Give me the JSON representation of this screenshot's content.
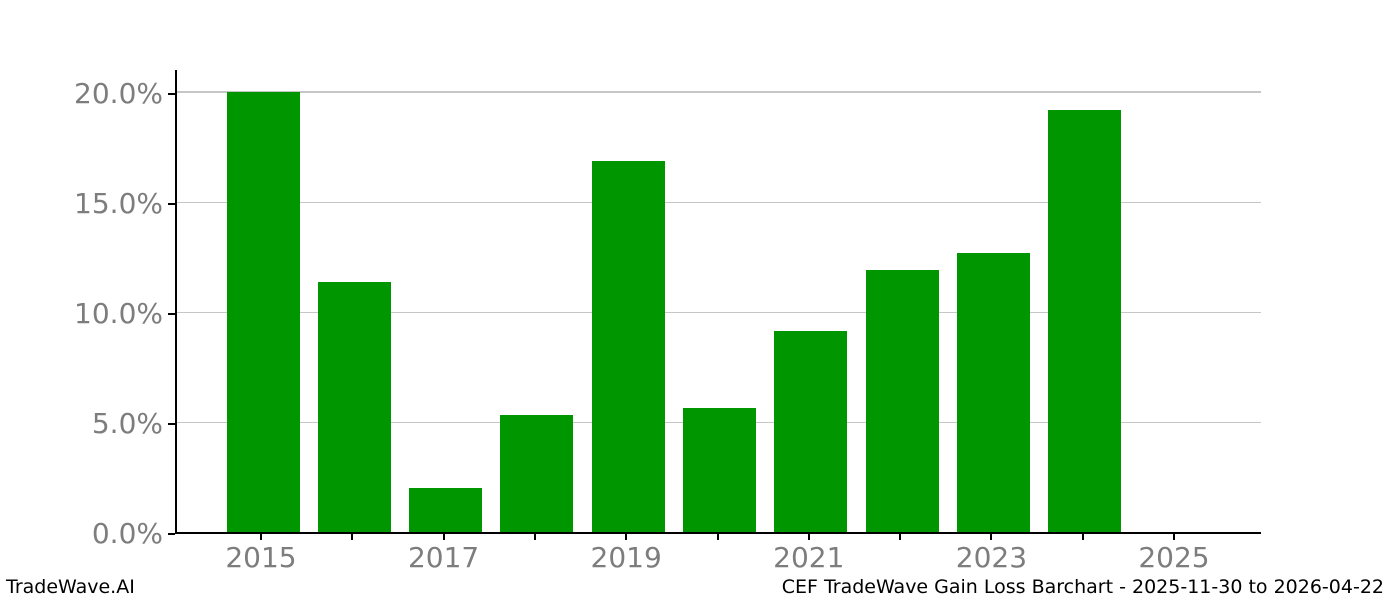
{
  "footer": {
    "left": "TradeWave.AI",
    "right": "CEF TradeWave Gain Loss Barchart - 2025-11-30 to 2026-04-22"
  },
  "colors": {
    "bar": "#009600",
    "grid": "#c6c6c6",
    "spine": "#000000",
    "tick_label": "#7d7d7d",
    "background": "#ffffff"
  },
  "chart_data": {
    "type": "bar",
    "title": "",
    "xlabel": "",
    "ylabel": "",
    "categories": [
      "2015",
      "2016",
      "2017",
      "2018",
      "2019",
      "2020",
      "2021",
      "2022",
      "2023",
      "2024",
      "2025"
    ],
    "values": [
      20.0,
      11.35,
      2.0,
      5.3,
      16.85,
      5.65,
      9.15,
      11.9,
      12.7,
      19.2,
      0.0
    ],
    "unit": "%",
    "series_name": "Gain Loss",
    "ylim": [
      0,
      21.09
    ],
    "y_ticks": [
      {
        "value": 0,
        "label": "0.0%"
      },
      {
        "value": 5,
        "label": "5.0%"
      },
      {
        "value": 10,
        "label": "10.0%"
      },
      {
        "value": 15,
        "label": "15.0%"
      },
      {
        "value": 20,
        "label": "20.0%"
      }
    ],
    "x_tick_labels": [
      {
        "index": 0,
        "label": "2015"
      },
      {
        "index": 2,
        "label": "2017"
      },
      {
        "index": 4,
        "label": "2019"
      },
      {
        "index": 6,
        "label": "2021"
      },
      {
        "index": 8,
        "label": "2023"
      },
      {
        "index": 10,
        "label": "2025"
      }
    ],
    "grid": "horizontal",
    "legend": "none"
  }
}
